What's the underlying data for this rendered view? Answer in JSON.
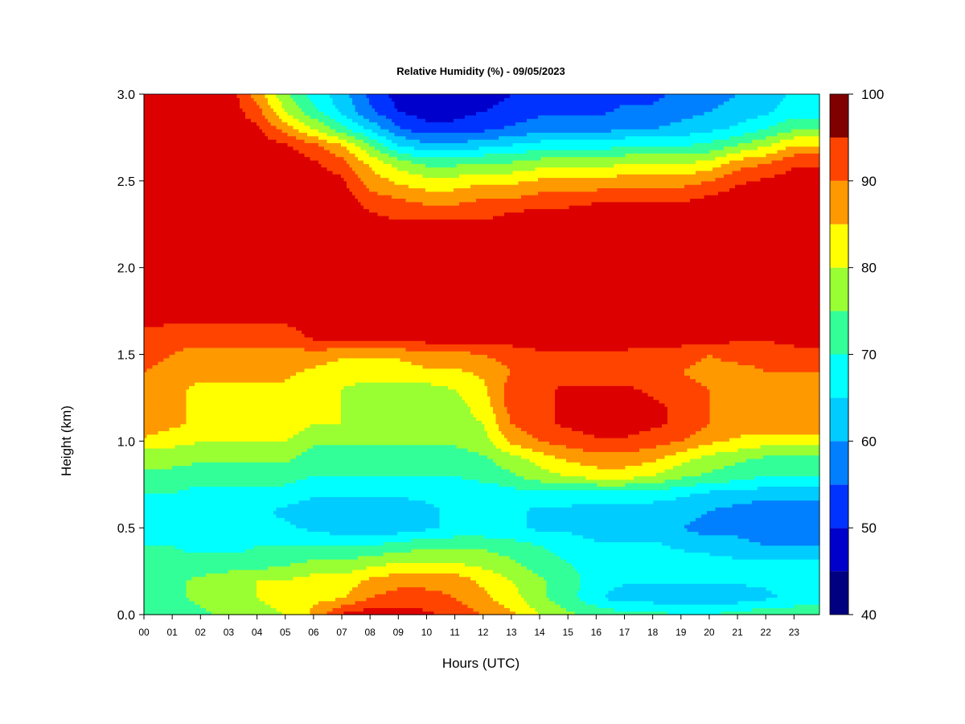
{
  "chart_data": {
    "type": "heatmap",
    "title": "Relative Humidity (%) - 09/05/2023",
    "xlabel": "Hours (UTC)",
    "ylabel": "Height (km)",
    "x_ticks": [
      "00",
      "01",
      "02",
      "03",
      "04",
      "05",
      "06",
      "07",
      "08",
      "09",
      "10",
      "11",
      "12",
      "13",
      "14",
      "15",
      "16",
      "17",
      "18",
      "19",
      "20",
      "21",
      "22",
      "23"
    ],
    "y_ticks": [
      "0.0",
      "0.5",
      "1.0",
      "1.5",
      "2.0",
      "2.5",
      "3.0"
    ],
    "xlim": [
      0,
      23.9
    ],
    "ylim": [
      0,
      3.0
    ],
    "colorbar": {
      "levels": [
        40,
        45,
        50,
        55,
        60,
        65,
        70,
        75,
        80,
        85,
        90,
        95,
        100
      ],
      "tick_labels": [
        "40",
        "50",
        "60",
        "70",
        "80",
        "90",
        "100"
      ],
      "colors": [
        "#000080",
        "#0000cc",
        "#0033ff",
        "#0080ff",
        "#00ccff",
        "#00ffff",
        "#33ff99",
        "#99ff33",
        "#ffff00",
        "#ff9900",
        "#ff4400",
        "#dd0000",
        "#800000"
      ]
    },
    "hours": [
      0,
      1,
      2,
      3,
      4,
      5,
      6,
      7,
      8,
      9,
      10,
      11,
      12,
      13,
      14,
      15,
      16,
      17,
      18,
      19,
      20,
      21,
      22,
      23
    ],
    "heights_km": [
      0.0,
      0.1,
      0.2,
      0.3,
      0.4,
      0.5,
      0.6,
      0.7,
      0.8,
      0.9,
      1.0,
      1.1,
      1.2,
      1.3,
      1.4,
      1.5,
      1.6,
      1.7,
      1.8,
      1.9,
      2.0,
      2.1,
      2.2,
      2.3,
      2.4,
      2.5,
      2.6,
      2.7,
      2.8,
      2.9,
      3.0
    ],
    "z_rh": [
      [
        70,
        72,
        74,
        76,
        78,
        80,
        86,
        96,
        98,
        98,
        96,
        94,
        90,
        86,
        80,
        76,
        74,
        72,
        72,
        70,
        70,
        72,
        74,
        74
      ],
      [
        72,
        74,
        76,
        78,
        80,
        82,
        84,
        84,
        90,
        92,
        92,
        90,
        86,
        82,
        76,
        72,
        66,
        62,
        62,
        62,
        62,
        62,
        64,
        66
      ],
      [
        74,
        74,
        76,
        78,
        80,
        80,
        82,
        82,
        86,
        88,
        88,
        88,
        84,
        80,
        76,
        72,
        68,
        66,
        66,
        66,
        66,
        66,
        66,
        68
      ],
      [
        72,
        72,
        72,
        72,
        72,
        74,
        76,
        76,
        78,
        80,
        80,
        80,
        78,
        76,
        72,
        70,
        68,
        68,
        68,
        68,
        68,
        66,
        66,
        66
      ],
      [
        70,
        70,
        68,
        68,
        70,
        70,
        70,
        70,
        70,
        72,
        74,
        74,
        74,
        72,
        70,
        68,
        66,
        66,
        66,
        64,
        62,
        62,
        60,
        60
      ],
      [
        66,
        66,
        66,
        66,
        66,
        66,
        64,
        62,
        62,
        62,
        64,
        66,
        66,
        66,
        64,
        64,
        62,
        62,
        62,
        60,
        58,
        58,
        56,
        56
      ],
      [
        66,
        66,
        66,
        66,
        66,
        64,
        62,
        62,
        62,
        62,
        64,
        66,
        66,
        66,
        64,
        64,
        62,
        62,
        62,
        62,
        60,
        58,
        56,
        56
      ],
      [
        70,
        70,
        68,
        68,
        68,
        68,
        66,
        66,
        66,
        66,
        66,
        66,
        66,
        68,
        68,
        68,
        68,
        68,
        68,
        66,
        64,
        64,
        62,
        62
      ],
      [
        74,
        74,
        72,
        72,
        72,
        72,
        70,
        70,
        70,
        70,
        70,
        70,
        72,
        74,
        78,
        80,
        82,
        82,
        80,
        76,
        74,
        72,
        70,
        70
      ],
      [
        76,
        76,
        76,
        76,
        76,
        76,
        72,
        72,
        72,
        72,
        72,
        72,
        74,
        78,
        82,
        86,
        88,
        88,
        86,
        82,
        78,
        76,
        74,
        74
      ],
      [
        84,
        82,
        80,
        80,
        80,
        80,
        76,
        76,
        76,
        76,
        76,
        76,
        78,
        86,
        90,
        92,
        94,
        94,
        92,
        90,
        86,
        84,
        82,
        82
      ],
      [
        88,
        86,
        84,
        84,
        84,
        84,
        80,
        80,
        78,
        78,
        78,
        78,
        80,
        90,
        94,
        96,
        98,
        98,
        96,
        94,
        90,
        88,
        88,
        88
      ],
      [
        88,
        86,
        84,
        84,
        84,
        84,
        82,
        80,
        78,
        78,
        78,
        78,
        82,
        92,
        94,
        96,
        98,
        98,
        96,
        94,
        90,
        88,
        88,
        88
      ],
      [
        88,
        86,
        84,
        84,
        84,
        84,
        82,
        80,
        78,
        78,
        78,
        80,
        84,
        92,
        94,
        96,
        96,
        96,
        94,
        92,
        90,
        88,
        88,
        88
      ],
      [
        90,
        88,
        86,
        86,
        86,
        86,
        84,
        82,
        82,
        82,
        84,
        84,
        86,
        90,
        92,
        92,
        92,
        92,
        90,
        90,
        88,
        88,
        90,
        90
      ],
      [
        92,
        90,
        88,
        88,
        88,
        88,
        88,
        86,
        86,
        86,
        88,
        88,
        90,
        92,
        94,
        94,
        94,
        94,
        92,
        92,
        90,
        92,
        92,
        94
      ],
      [
        94,
        92,
        92,
        92,
        92,
        92,
        96,
        98,
        98,
        98,
        98,
        98,
        98,
        98,
        98,
        98,
        98,
        98,
        98,
        98,
        98,
        96,
        96,
        96
      ],
      [
        96,
        96,
        96,
        96,
        96,
        96,
        98,
        98,
        98,
        98,
        98,
        98,
        98,
        98,
        98,
        98,
        98,
        98,
        98,
        98,
        98,
        98,
        98,
        98
      ],
      [
        98,
        98,
        98,
        98,
        98,
        98,
        98,
        98,
        98,
        98,
        98,
        98,
        98,
        98,
        98,
        98,
        98,
        98,
        98,
        98,
        98,
        98,
        98,
        98
      ],
      [
        98,
        98,
        98,
        98,
        98,
        98,
        98,
        98,
        98,
        98,
        98,
        98,
        98,
        98,
        98,
        98,
        98,
        98,
        98,
        98,
        98,
        98,
        98,
        98
      ],
      [
        98,
        98,
        98,
        98,
        98,
        98,
        98,
        98,
        98,
        98,
        98,
        98,
        98,
        98,
        98,
        98,
        98,
        98,
        98,
        98,
        98,
        98,
        98,
        98
      ],
      [
        98,
        98,
        98,
        98,
        98,
        98,
        98,
        98,
        98,
        98,
        98,
        98,
        98,
        98,
        98,
        98,
        98,
        98,
        98,
        98,
        98,
        98,
        98,
        98
      ],
      [
        98,
        98,
        98,
        98,
        98,
        98,
        98,
        98,
        98,
        98,
        98,
        98,
        98,
        98,
        98,
        98,
        98,
        98,
        98,
        98,
        98,
        98,
        98,
        98
      ],
      [
        98,
        98,
        98,
        98,
        98,
        98,
        98,
        98,
        96,
        94,
        94,
        94,
        94,
        96,
        98,
        98,
        98,
        98,
        98,
        98,
        98,
        98,
        98,
        98
      ],
      [
        98,
        98,
        98,
        98,
        98,
        98,
        98,
        98,
        92,
        90,
        88,
        88,
        90,
        90,
        92,
        92,
        94,
        94,
        94,
        94,
        96,
        98,
        98,
        98
      ],
      [
        98,
        98,
        98,
        98,
        98,
        98,
        98,
        96,
        88,
        84,
        82,
        82,
        84,
        84,
        86,
        86,
        86,
        88,
        88,
        88,
        90,
        94,
        96,
        98
      ],
      [
        98,
        98,
        98,
        98,
        98,
        98,
        96,
        92,
        84,
        78,
        74,
        74,
        76,
        76,
        78,
        78,
        78,
        80,
        80,
        80,
        82,
        88,
        90,
        94
      ],
      [
        98,
        98,
        98,
        98,
        98,
        96,
        92,
        86,
        76,
        66,
        62,
        62,
        64,
        66,
        68,
        68,
        68,
        70,
        70,
        70,
        72,
        76,
        80,
        86
      ],
      [
        98,
        98,
        98,
        98,
        96,
        88,
        80,
        72,
        64,
        56,
        52,
        52,
        54,
        56,
        58,
        58,
        58,
        60,
        60,
        62,
        64,
        66,
        70,
        74
      ],
      [
        98,
        98,
        98,
        98,
        92,
        80,
        72,
        64,
        56,
        50,
        48,
        48,
        50,
        52,
        54,
        54,
        54,
        56,
        56,
        58,
        60,
        62,
        64,
        68
      ],
      [
        98,
        98,
        98,
        98,
        88,
        76,
        68,
        62,
        54,
        48,
        46,
        46,
        48,
        50,
        52,
        52,
        52,
        54,
        54,
        56,
        58,
        60,
        62,
        66
      ]
    ]
  }
}
